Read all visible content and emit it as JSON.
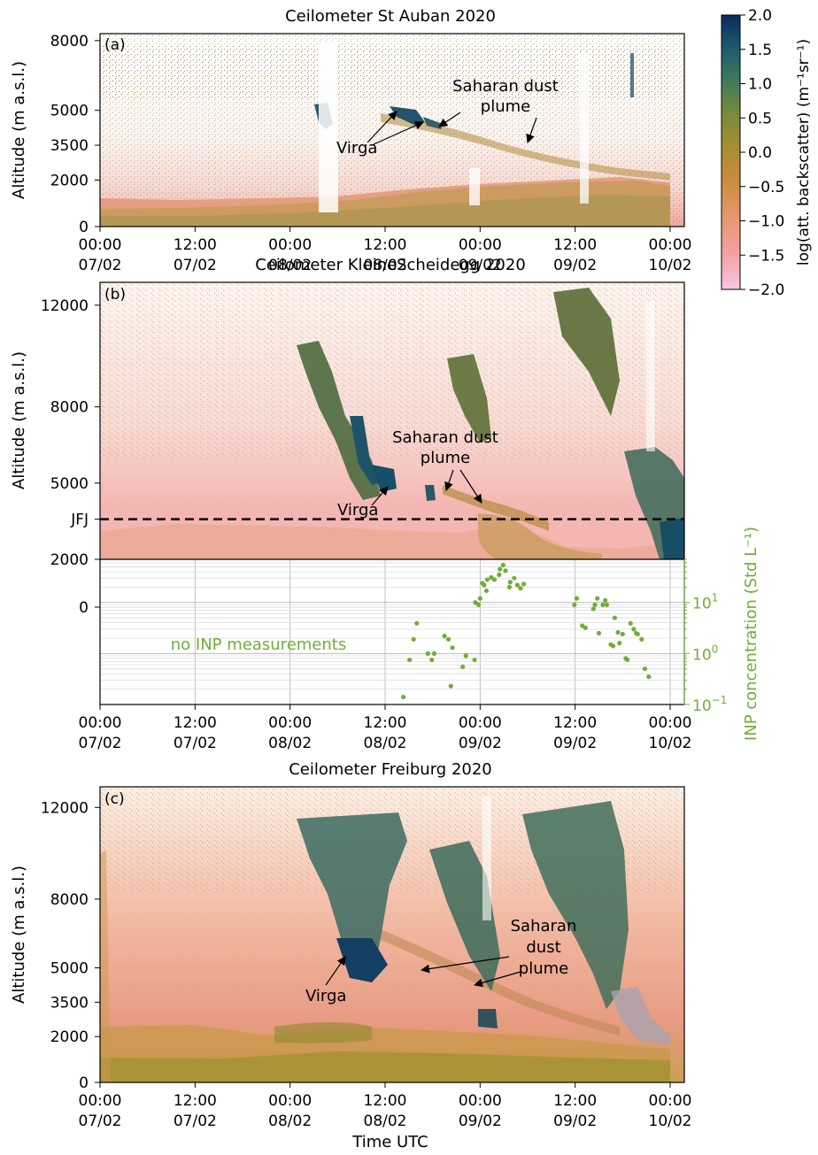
{
  "chart_data": [
    {
      "type": "heatmap",
      "panel_label": "(a)",
      "title": "Ceilometer St Auban 2020",
      "ylabel": "Altitude (m a.s.l.)",
      "yticks": [
        0,
        2000,
        3500,
        5000,
        8000
      ],
      "ylim": [
        0,
        8300
      ],
      "xlim_hours": [
        0,
        72
      ],
      "x_ticks": [
        {
          "h": 0,
          "time": "00:00",
          "date": "07/02"
        },
        {
          "h": 12,
          "time": "12:00",
          "date": "07/02"
        },
        {
          "h": 24,
          "time": "00:00",
          "date": "08/02"
        },
        {
          "h": 36,
          "time": "12:00",
          "date": "08/02"
        },
        {
          "h": 48,
          "time": "00:00",
          "date": "09/02"
        },
        {
          "h": 60,
          "time": "12:00",
          "date": "09/02"
        },
        {
          "h": 72,
          "time": "00:00",
          "date": "10/02"
        }
      ],
      "annotations": [
        {
          "label": "Virga"
        },
        {
          "label": "Saharan dust\nplume"
        }
      ]
    },
    {
      "type": "heatmap",
      "panel_label": "(b)",
      "title": "Ceilometer KleineScheidegg 2020",
      "ylabel": "Altitude (m a.s.l.)",
      "yticks": [
        2000,
        5000,
        8000,
        12000
      ],
      "ylim": [
        2000,
        12900
      ],
      "reference_line": {
        "label": "JFJ",
        "value": 3580
      },
      "xlim_hours": [
        0,
        72
      ],
      "annotations": [
        {
          "label": "Virga"
        },
        {
          "label": "Saharan dust\nplume"
        }
      ],
      "lower_axis": {
        "type": "scatter",
        "left_tick_label": "0",
        "ylabel": "INP concentration (Std L⁻¹)",
        "yscale": "log",
        "ylim": [
          0.1,
          70
        ],
        "no_data_text": "no INP measurements",
        "x_ticks": [
          {
            "h": 0,
            "time": "00:00",
            "date": "07/02"
          },
          {
            "h": 12,
            "time": "12:00",
            "date": "07/02"
          },
          {
            "h": 24,
            "time": "00:00",
            "date": "08/02"
          },
          {
            "h": 36,
            "time": "12:00",
            "date": "08/02"
          },
          {
            "h": 48,
            "time": "00:00",
            "date": "09/02"
          },
          {
            "h": 60,
            "time": "12:00",
            "date": "09/02"
          },
          {
            "h": 72,
            "time": "00:00",
            "date": "10/02"
          }
        ],
        "points": [
          [
            38.3,
            0.14
          ],
          [
            39.1,
            0.75
          ],
          [
            39.6,
            1.9
          ],
          [
            40.0,
            3.9
          ],
          [
            41.4,
            1.0
          ],
          [
            41.9,
            0.75
          ],
          [
            42.2,
            1.0
          ],
          [
            43.5,
            2.2
          ],
          [
            44.0,
            1.9
          ],
          [
            44.3,
            0.23
          ],
          [
            44.5,
            1.3
          ],
          [
            45.8,
            0.55
          ],
          [
            46.2,
            0.9
          ],
          [
            47.3,
            0.75
          ],
          [
            47.4,
            10
          ],
          [
            47.8,
            9
          ],
          [
            48.0,
            12
          ],
          [
            48.3,
            24
          ],
          [
            48.5,
            22
          ],
          [
            48.8,
            17
          ],
          [
            48.9,
            28
          ],
          [
            49.4,
            31
          ],
          [
            49.8,
            28
          ],
          [
            50.4,
            35
          ],
          [
            50.5,
            45
          ],
          [
            50.9,
            54
          ],
          [
            51.2,
            42
          ],
          [
            51.7,
            20
          ],
          [
            51.8,
            25
          ],
          [
            52.3,
            30
          ],
          [
            52.7,
            22
          ],
          [
            53.1,
            19
          ],
          [
            53.5,
            23
          ],
          [
            59.9,
            9
          ],
          [
            60.2,
            12
          ],
          [
            60.9,
            3.5
          ],
          [
            61.3,
            3.2
          ],
          [
            62.3,
            7.5
          ],
          [
            62.5,
            9
          ],
          [
            62.8,
            12
          ],
          [
            63.0,
            2.5
          ],
          [
            63.5,
            9
          ],
          [
            63.8,
            11
          ],
          [
            64.0,
            9
          ],
          [
            64.5,
            1.5
          ],
          [
            64.8,
            1.4
          ],
          [
            65.0,
            5
          ],
          [
            65.4,
            2.6
          ],
          [
            65.6,
            1.6
          ],
          [
            66.0,
            2.4
          ],
          [
            66.4,
            0.8
          ],
          [
            66.6,
            0.75
          ],
          [
            67.0,
            3.9
          ],
          [
            67.4,
            3
          ],
          [
            67.7,
            2.5
          ],
          [
            67.9,
            2.4
          ],
          [
            68.4,
            1.9
          ],
          [
            68.8,
            0.5
          ],
          [
            69.3,
            0.35
          ]
        ]
      }
    },
    {
      "type": "heatmap",
      "panel_label": "(c)",
      "title": "Ceilometer Freiburg 2020",
      "ylabel": "Altitude (m a.s.l.)",
      "xlabel": "Time UTC",
      "yticks": [
        0,
        2000,
        3500,
        5000,
        8000,
        12000
      ],
      "ylim": [
        0,
        12900
      ],
      "xlim_hours": [
        0,
        72
      ],
      "x_ticks": [
        {
          "h": 0,
          "time": "00:00",
          "date": "07/02"
        },
        {
          "h": 12,
          "time": "12:00",
          "date": "07/02"
        },
        {
          "h": 24,
          "time": "00:00",
          "date": "08/02"
        },
        {
          "h": 36,
          "time": "12:00",
          "date": "08/02"
        },
        {
          "h": 48,
          "time": "00:00",
          "date": "09/02"
        },
        {
          "h": 60,
          "time": "12:00",
          "date": "09/02"
        },
        {
          "h": 72,
          "time": "00:00",
          "date": "10/02"
        }
      ],
      "annotations": [
        {
          "label": "Virga"
        },
        {
          "label": "Saharan\ndust\nplume"
        }
      ]
    }
  ],
  "colorbar": {
    "label": "log(att. backscatter) (m⁻¹sr⁻¹)",
    "ticks": [
      "2.0",
      "1.5",
      "1.0",
      "0.5",
      "0.0",
      "−0.5",
      "−1.0",
      "−1.5",
      "−2.0"
    ],
    "range": [
      -2.0,
      2.0
    ],
    "colors": [
      "#f6c7e6",
      "#f3a0a3",
      "#e4986a",
      "#c98c3e",
      "#a88d32",
      "#7a8a3c",
      "#3f7a5c",
      "#1d5a6e",
      "#0d2a5a"
    ]
  }
}
